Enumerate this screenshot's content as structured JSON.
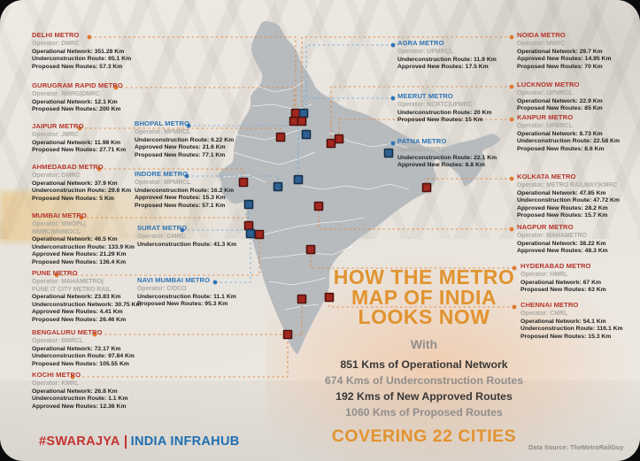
{
  "colors": {
    "accent_orange": "#E1932F",
    "city_red": "#B5352A",
    "city_blue": "#2E74B5",
    "leader_orange": "#E0823C",
    "leader_blue": "#6FA8DC",
    "marker_red": "#A2271F",
    "marker_blue": "#2D6090"
  },
  "headline": {
    "title_lines": [
      "HOW THE METRO",
      "MAP OF INDIA",
      "LOOKS NOW"
    ],
    "with_label": "With",
    "stats": [
      {
        "text": "851 Kms of Operational Network",
        "tone": "dark"
      },
      {
        "text": "674 Kms of Underconstruction Routes",
        "tone": "gray"
      },
      {
        "text": "192 Kms of New Approved Routes",
        "tone": "dark"
      },
      {
        "text": "1060 Kms of Proposed Routes",
        "tone": "gray"
      }
    ],
    "covering": "COVERING 22 CITIES"
  },
  "footer": {
    "brand_primary": "#SWARAJYA",
    "brand_secondary": "INDIA INFRAHUB",
    "data_source": "Data Source: TheMetroRailGuy"
  },
  "cities": [
    {
      "id": "delhi",
      "name": "DELHI METRO",
      "color": "red",
      "operator_lines": [
        "Operator: DMRC"
      ],
      "stats": [
        "Operational Network: 351.28 Km",
        "Underconstruction Route: 65.1 Km",
        "Proposed New Routes: 57.3 Km"
      ]
    },
    {
      "id": "gurugram",
      "name": "GURUGRAM RAPID METRO",
      "color": "red",
      "operator_lines": [
        "Operator: RMRG|DMRC"
      ],
      "stats": [
        "Operational Network: 12.1 Km",
        "Proposed New Routes: 200 Km"
      ]
    },
    {
      "id": "jaipur",
      "name": "JAIPUR METRO",
      "color": "red",
      "operator_lines": [
        "Operator: JMRC"
      ],
      "stats": [
        "Operational Network: 11.98 Km",
        "Proposed New Routes: 27.71 Km"
      ]
    },
    {
      "id": "ahmedabad",
      "name": "AHMEDABAD METRO",
      "color": "red",
      "operator_lines": [
        "Operator: GMRC"
      ],
      "stats": [
        "Operational Network: 37.9 Km",
        "Underconstruction Route: 29.6 Km",
        "Proposed New Routes: 5 Km"
      ]
    },
    {
      "id": "mumbai",
      "name": "MUMBAI METRO",
      "color": "red",
      "operator_lines": [
        "Operator: MMOPL|",
        "MMRC|MMMOCL"
      ],
      "stats": [
        "Operational Network: 46.5 Km",
        "Underconstruction Route: 133.9 Km",
        "Approved New Routes: 21.29 Km",
        "Proposed New Routes: 136.4 Km"
      ]
    },
    {
      "id": "pune",
      "name": "PUNE METRO",
      "color": "red",
      "operator_lines": [
        "Operator: MAHAMETRO|",
        "PUNE IT CITY METRO RAIL"
      ],
      "stats": [
        "Operational Network: 23.83 Km",
        "Underconstruction Network: 30.75 Km",
        "Approved New Routes: 4.41 Km",
        "Proposed New Routes: 26.46 Km"
      ]
    },
    {
      "id": "bengaluru",
      "name": "BENGALURU METRO",
      "color": "red",
      "operator_lines": [
        "Operator: BMRCL"
      ],
      "stats": [
        "Operational Network: 72.17 Km",
        "Underconstruction Route: 97.84 Km",
        "Proposed New Routes: 105.55 Km"
      ]
    },
    {
      "id": "kochi",
      "name": "KOCHI METRO",
      "color": "red",
      "operator_lines": [
        "Operator: KMRL"
      ],
      "stats": [
        "Operational Network: 26.8 Km",
        "Underconstruction Route: 1.1 Km",
        "Approved New Routes: 12.36 Km"
      ]
    },
    {
      "id": "bhopal",
      "name": "BHOPAL METRO",
      "color": "blue",
      "operator_lines": [
        "Operator: MPMRCL"
      ],
      "stats": [
        "Underconstruction Route: 6.22 Km",
        "Approved New Routes: 21.6 Km",
        "Proposed New Routes: 77.1 Km"
      ]
    },
    {
      "id": "indore",
      "name": "INDORE METRO",
      "color": "blue",
      "operator_lines": [
        "Operator: MPMRCL"
      ],
      "stats": [
        "Underconstruction Route: 16.2 Km",
        "Approved New Routes: 15.3 Km",
        "Proposed New Routes: 57.1 Km"
      ]
    },
    {
      "id": "surat",
      "name": "SURAT METRO",
      "color": "blue",
      "operator_lines": [
        "Operator: GMRC"
      ],
      "stats": [
        "Underconstruction Route: 41.3 Km"
      ]
    },
    {
      "id": "navi_mumbai",
      "name": "NAVI MUMBAI METRO",
      "color": "blue",
      "operator_lines": [
        "Operator: CIDCO"
      ],
      "stats": [
        "Underconstruction Route: 11.1 Km",
        "Proposed New Routes: 95.3 Km"
      ]
    },
    {
      "id": "agra",
      "name": "AGRA METRO",
      "color": "blue",
      "operator_lines": [
        "Operator: UPMRCL"
      ],
      "stats": [
        "Underconstruction Route: 11.9 Km",
        "Approved New Routes: 17.5 Km"
      ]
    },
    {
      "id": "meerut",
      "name": "MEERUT METRO",
      "color": "blue",
      "operator_lines": [
        "Operator: NCRTC|UPMRC"
      ],
      "stats": [
        "Underconstruction Route: 20 Km",
        "Proposed New Routes: 15 Km"
      ]
    },
    {
      "id": "patna",
      "name": "PATNA METRO",
      "color": "blue",
      "operator_lines": [
        "Operator: PMRC"
      ],
      "stats": [
        "Underconstruction Route: 22.1 Km",
        "Approved New Routes: 8.8 Km"
      ]
    },
    {
      "id": "noida",
      "name": "NOIDA METRO",
      "color": "red",
      "operator_lines": [
        "Operator: NMRC"
      ],
      "stats": [
        "Operational Network: 29.7 Km",
        "Approved New Routes: 14.95 Km",
        "Proposed New Routes: 70 Km"
      ]
    },
    {
      "id": "lucknow",
      "name": "LUCKNOW METRO",
      "color": "red",
      "operator_lines": [
        "Operator: UPMRCL"
      ],
      "stats": [
        "Operational Network: 22.9 Km",
        "Proposed New Routes: 85 Km"
      ]
    },
    {
      "id": "kanpur",
      "name": "KANPUR METRO",
      "color": "red",
      "operator_lines": [
        "Operator: UPMRCL"
      ],
      "stats": [
        "Operational Network: 8.73 Km",
        "Underconstruction Route: 22.58 Km",
        "Proposed New Routes: 8.6 Km"
      ]
    },
    {
      "id": "kolkata",
      "name": "KOLKATA METRO",
      "color": "red",
      "operator_lines": [
        "Operator: METRO RAILWAY|KMRC"
      ],
      "stats": [
        "Operational Network: 47.85 Km",
        "Underconstruction Route: 47.72 Km",
        "Approved New Routes: 28.2 Km",
        "Proposed New Routes: 15.7 Km"
      ]
    },
    {
      "id": "nagpur",
      "name": "NAGPUR METRO",
      "color": "red",
      "operator_lines": [
        "Operator: MAHAMETRO"
      ],
      "stats": [
        "Operational Network: 38.22 Km",
        "Approved New Routes: 48.3 Km"
      ]
    },
    {
      "id": "hyderabad",
      "name": "HYDERABAD METRO",
      "color": "red",
      "operator_lines": [
        "Operator: HMRL"
      ],
      "stats": [
        "Operational Network: 67 Km",
        "Proposed New Routes: 63 Km"
      ]
    },
    {
      "id": "chennai",
      "name": "CHENNAI METRO",
      "color": "red",
      "operator_lines": [
        "Operator: CMRL"
      ],
      "stats": [
        "Operational Network: 54.1 Km",
        "Underconstruction Route: 116.1 Km",
        "Proposed New Routes: 15.3 Km"
      ]
    }
  ]
}
